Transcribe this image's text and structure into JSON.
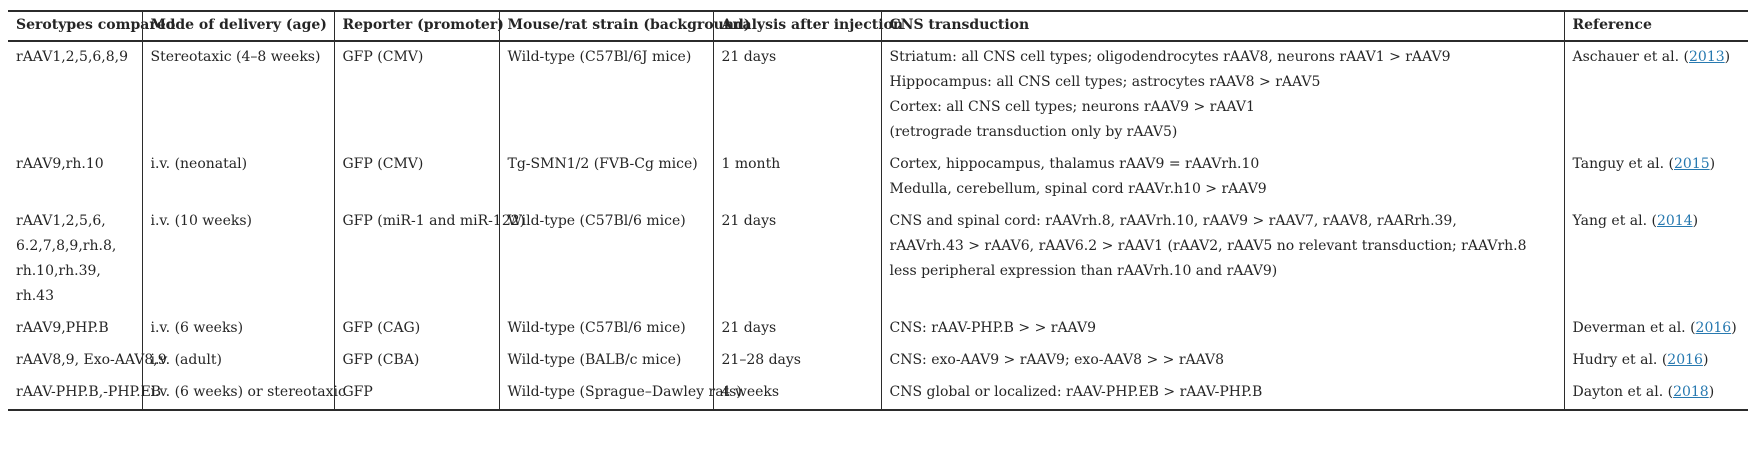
{
  "table": {
    "link_color": "#2779b0",
    "columns": [
      "Serotypes compared",
      "Mode of delivery (age)",
      "Reporter (promoter)",
      "Mouse/rat strain (background)",
      "Analysis after injection",
      "CNS transduction",
      "Reference"
    ],
    "rows": [
      {
        "serotypes": [
          "rAAV1,2,5,6,8,9"
        ],
        "delivery": [
          "Stereotaxic (4–8 weeks)"
        ],
        "reporter": [
          "GFP (CMV)"
        ],
        "strain": [
          "Wild-type (C57Bl/6J mice)"
        ],
        "analysis": [
          "21 days"
        ],
        "transduction": [
          "Striatum: all CNS cell types; oligodendrocytes rAAV8, neurons rAAV1 > rAAV9",
          "Hippocampus: all CNS cell types; astrocytes rAAV8 > rAAV5",
          "Cortex: all CNS cell types; neurons rAAV9 > rAAV1",
          "(retrograde transduction only by rAAV5)"
        ],
        "reference": {
          "label": "Aschauer et al.",
          "year": "2013"
        }
      },
      {
        "serotypes": [
          "rAAV9,rh.10"
        ],
        "delivery": [
          "i.v. (neonatal)"
        ],
        "reporter": [
          "GFP (CMV)"
        ],
        "strain": [
          "Tg-SMN1/2 (FVB-Cg mice)"
        ],
        "analysis": [
          "1 month"
        ],
        "transduction": [
          "Cortex, hippocampus, thalamus rAAV9 = rAAVrh.10",
          "Medulla, cerebellum, spinal cord rAAVr.h10 > rAAV9"
        ],
        "reference": {
          "label": "Tanguy et al.",
          "year": "2015"
        }
      },
      {
        "serotypes": [
          "rAAV1,2,5,6,",
          "6.2,7,8,9,rh.8,",
          "rh.10,rh.39,",
          "rh.43"
        ],
        "delivery": [
          "i.v. (10 weeks)"
        ],
        "reporter": [
          "GFP (miR-1 and miR-122)"
        ],
        "strain": [
          "Wild-type (C57Bl/6 mice)"
        ],
        "analysis": [
          "21 days"
        ],
        "transduction": [
          "CNS and spinal cord: rAAVrh.8, rAAVrh.10, rAAV9 > rAAV7, rAAV8, rAARrh.39,",
          "rAAVrh.43 > rAAV6, rAAV6.2 > rAAV1 (rAAV2, rAAV5 no relevant transduction; rAAVrh.8",
          "less peripheral expression than rAAVrh.10 and rAAV9)"
        ],
        "reference": {
          "label": "Yang et al.",
          "year": "2014"
        }
      },
      {
        "serotypes": [
          "rAAV9,PHP.B"
        ],
        "delivery": [
          "i.v. (6 weeks)"
        ],
        "reporter": [
          "GFP (CAG)"
        ],
        "strain": [
          "Wild-type (C57Bl/6 mice)"
        ],
        "analysis": [
          "21 days"
        ],
        "transduction": [
          "CNS: rAAV-PHP.B > > rAAV9"
        ],
        "reference": {
          "label": "Deverman et al.",
          "year": "2016"
        }
      },
      {
        "serotypes": [
          "rAAV8,9, Exo-AAV8,9"
        ],
        "delivery": [
          "i.v. (adult)"
        ],
        "reporter": [
          "GFP (CBA)"
        ],
        "strain": [
          "Wild-type (BALB/c mice)"
        ],
        "analysis": [
          "21–28 days"
        ],
        "transduction": [
          "CNS: exo-AAV9 > rAAV9; exo-AAV8 > > rAAV8"
        ],
        "reference": {
          "label": "Hudry et al.",
          "year": "2016"
        }
      },
      {
        "serotypes": [
          "rAAV-PHP.B,-PHP.EB"
        ],
        "delivery": [
          "i.v. (6 weeks) or stereotaxic"
        ],
        "reporter": [
          "GFP"
        ],
        "strain": [
          "Wild-type (Sprague–Dawley rats)"
        ],
        "analysis": [
          "4 weeks"
        ],
        "transduction": [
          "CNS global or localized: rAAV-PHP.EB > rAAV-PHP.B"
        ],
        "reference": {
          "label": "Dayton et al.",
          "year": "2018"
        }
      }
    ]
  }
}
